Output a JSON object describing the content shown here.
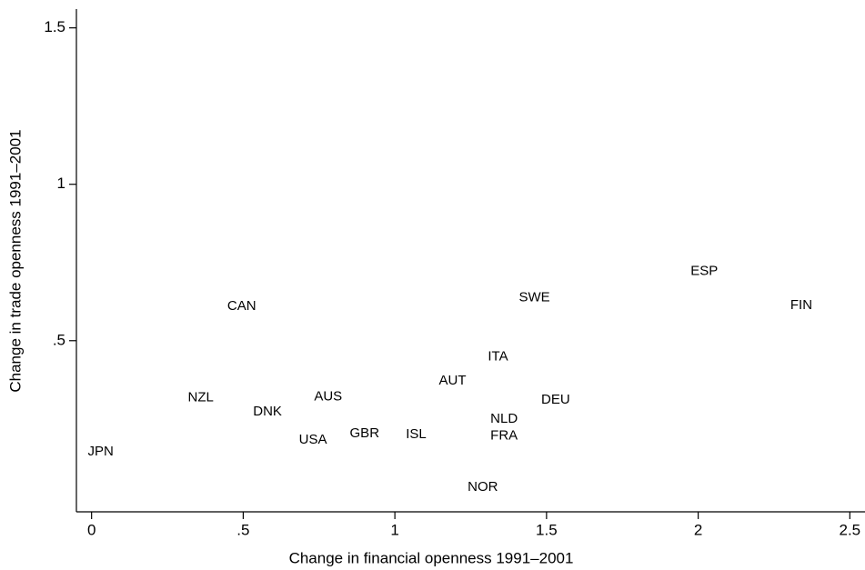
{
  "chart_data": {
    "type": "scatter",
    "xlabel": "Change in financial openness 1991–2001",
    "ylabel": "Change in trade openness 1991–2001",
    "labels": [
      "JPN",
      "NZL",
      "CAN",
      "DNK",
      "AUS",
      "USA",
      "GBR",
      "ISL",
      "AUT",
      "ITA",
      "NLD",
      "FRA",
      "NOR",
      "SWE",
      "DEU",
      "ESP",
      "FIN"
    ],
    "x": [
      0.03,
      0.36,
      0.495,
      0.58,
      0.78,
      0.73,
      0.9,
      1.07,
      1.19,
      1.34,
      1.36,
      1.36,
      1.29,
      1.46,
      1.53,
      2.02,
      2.34
    ],
    "y": [
      0.145,
      0.317,
      0.61,
      0.273,
      0.32,
      0.183,
      0.203,
      0.2,
      0.372,
      0.448,
      0.25,
      0.195,
      0.032,
      0.637,
      0.311,
      0.721,
      0.613
    ],
    "color": "#000000",
    "xlim": [
      -0.05,
      2.55
    ],
    "ylim": [
      -0.047,
      1.56
    ],
    "xticks": [
      0,
      {
        "value": 0.5,
        "label": ".5"
      },
      1,
      1.5,
      2,
      2.5
    ],
    "yticks": [
      {
        "value": 0.5,
        "label": ".5"
      },
      1,
      1.5
    ]
  }
}
